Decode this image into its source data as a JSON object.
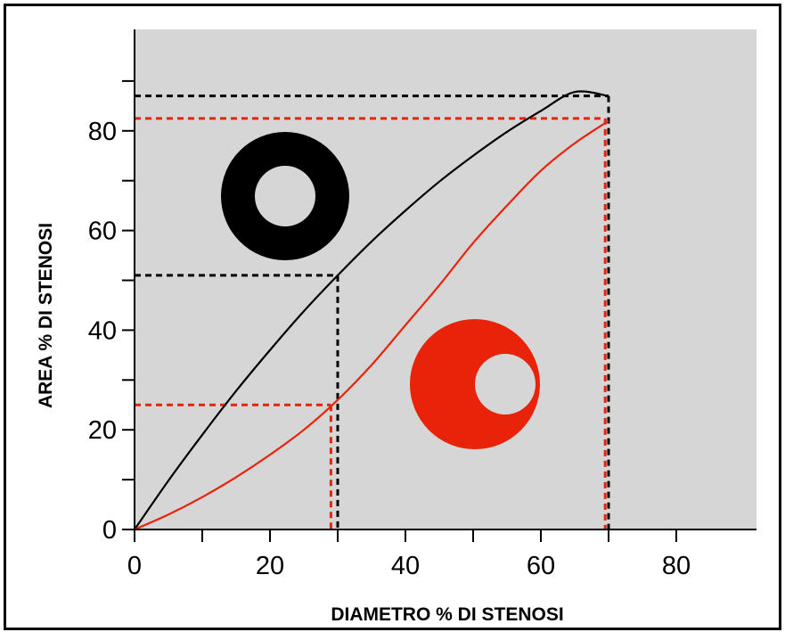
{
  "chart_data": {
    "type": "line",
    "xlabel": "DIAMETRO % DI STENOSI",
    "ylabel": "AREA % DI STENOSI",
    "xlim": [
      0,
      92
    ],
    "ylim": [
      0,
      100
    ],
    "x_ticks": [
      0,
      20,
      40,
      60,
      80
    ],
    "x_minor_ticks": [
      10,
      30,
      50,
      70
    ],
    "y_ticks": [
      0,
      20,
      40,
      60,
      80
    ],
    "y_minor_ticks": [
      10,
      30,
      50,
      70,
      90
    ],
    "grid": false,
    "background": "#d6d6d6",
    "series": [
      {
        "color": "#000000",
        "x": [
          0,
          5,
          10,
          15,
          20,
          25,
          30,
          35,
          40,
          45,
          50,
          55,
          60,
          65,
          70
        ],
        "y": [
          0,
          9.8,
          19,
          27.8,
          36,
          43.8,
          51,
          57.8,
          64,
          69.8,
          75,
          79.8,
          84,
          87.8,
          87
        ]
      },
      {
        "color": "#e8230a",
        "x": [
          0,
          5,
          10,
          15,
          20,
          25,
          30,
          35,
          40,
          45,
          50,
          55,
          60,
          65,
          70
        ],
        "y": [
          0,
          3,
          6.5,
          10.5,
          15,
          20,
          26,
          33,
          41,
          49,
          57.5,
          65,
          72,
          77.5,
          82
        ]
      }
    ],
    "reference_lines": [
      {
        "color": "#000000",
        "x": 30,
        "y": 51
      },
      {
        "color": "#e8230a",
        "x": 29,
        "y": 25
      },
      {
        "color": "#000000",
        "x": 70,
        "y": 87
      },
      {
        "color": "#e8230a",
        "x": 69.5,
        "y": 82.5
      }
    ],
    "annotations": [
      {
        "type": "concentric-ring-icon",
        "color": "#000000"
      },
      {
        "type": "eccentric-ring-icon",
        "color": "#e8230a"
      }
    ]
  }
}
